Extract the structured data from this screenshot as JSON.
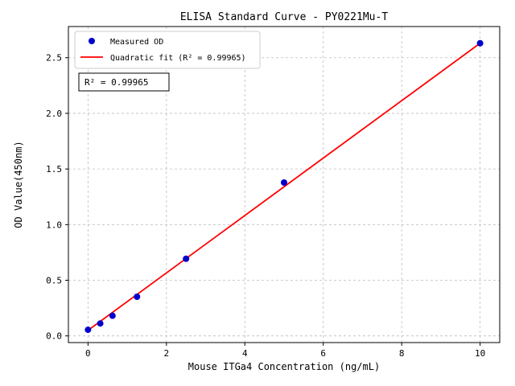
{
  "chart_data": {
    "type": "scatter",
    "title": "ELISA Standard Curve - PY0221Mu-T",
    "xlabel": "Mouse ITGa4 Concentration (ng/mL)",
    "ylabel": "OD Value(450nm)",
    "xlim": [
      -0.5,
      10.5
    ],
    "ylim": [
      -0.06,
      2.78
    ],
    "x_ticks": [
      0,
      2,
      4,
      6,
      8,
      10
    ],
    "y_ticks": [
      "0.0",
      "0.5",
      "1.0",
      "1.5",
      "2.0",
      "2.5"
    ],
    "grid": true,
    "legend": {
      "position": "upper-left",
      "entries": [
        {
          "label": "Measured OD",
          "marker": "dot",
          "color": "#0000cd"
        },
        {
          "label": "Quadratic fit (R² = 0.99965)",
          "marker": "line",
          "color": "#ff0000"
        }
      ]
    },
    "annotation": {
      "text": "R² = 0.99965"
    },
    "series": [
      {
        "name": "Measured OD",
        "kind": "scatter",
        "color": "#0000cd",
        "x": [
          0,
          0.3125,
          0.625,
          1.25,
          2.5,
          5,
          10
        ],
        "y": [
          0.055,
          0.112,
          0.181,
          0.352,
          0.693,
          1.378,
          2.63
        ]
      },
      {
        "name": "Quadratic fit",
        "kind": "line",
        "color": "#ff0000",
        "x": [
          0,
          10
        ],
        "y": [
          0.05,
          2.63
        ]
      }
    ],
    "colors": {
      "background": "#ffffff",
      "grid": "#bdbdbd",
      "axis": "#000000",
      "legend_border": "#cccccc",
      "annotation_border": "#000000"
    }
  }
}
